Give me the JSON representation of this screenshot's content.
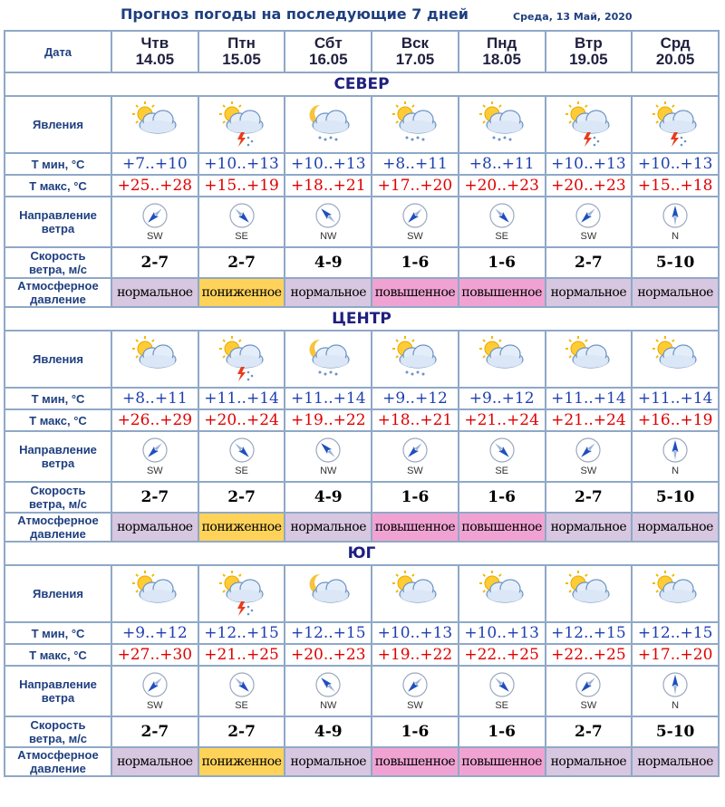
{
  "title": "Прогноз погоды на последующие 7 дней",
  "date": "Среда, 13 Май, 2020",
  "header": {
    "date_label": "Дата",
    "days": [
      {
        "dow": "Чтв",
        "date": "14.05"
      },
      {
        "dow": "Птн",
        "date": "15.05"
      },
      {
        "dow": "Сбт",
        "date": "16.05"
      },
      {
        "dow": "Вск",
        "date": "17.05"
      },
      {
        "dow": "Пнд",
        "date": "18.05"
      },
      {
        "dow": "Втр",
        "date": "19.05"
      },
      {
        "dow": "Срд",
        "date": "20.05"
      }
    ]
  },
  "row_labels": {
    "weather": "Явления",
    "tmin": "Т мин, °С",
    "tmax": "Т макс, °С",
    "wind_dir_1": "Направление",
    "wind_dir_2": "ветра",
    "wind_speed_1": "Скорость",
    "wind_speed_2": "ветра, м/с",
    "pressure_1": "Атмосферное",
    "pressure_2": "давление"
  },
  "regions": [
    {
      "name": "СЕВЕР",
      "weather_icons": [
        "sun-cloud-icon",
        "sun-cloud-thunder-icon",
        "moon-cloud-snow-icon",
        "sun-cloud-snow-icon",
        "sun-cloud-snow-icon",
        "sun-cloud-thunder-icon",
        "sun-cloud-thunder-icon"
      ],
      "tmin": [
        "+7..+10",
        "+10..+13",
        "+10..+13",
        "+8..+11",
        "+8..+11",
        "+10..+13",
        "+10..+13"
      ],
      "tmax": [
        "+25..+28",
        "+15..+19",
        "+18..+21",
        "+17..+20",
        "+20..+23",
        "+20..+23",
        "+15..+18"
      ],
      "wind_dir": [
        "SW",
        "SE",
        "NW",
        "SW",
        "SE",
        "SW",
        "N"
      ],
      "wind_speed": [
        "2-7",
        "2-7",
        "4-9",
        "1-6",
        "1-6",
        "2-7",
        "5-10"
      ],
      "pressure": [
        "нормальное",
        "пониженное",
        "нормальное",
        "повышенное",
        "повышенное",
        "нормальное",
        "нормальное"
      ]
    },
    {
      "name": "ЦЕНТР",
      "weather_icons": [
        "sun-cloud-icon",
        "sun-cloud-thunder-icon",
        "moon-cloud-snow-icon",
        "sun-cloud-snow-icon",
        "sun-cloud-icon",
        "sun-cloud-icon",
        "sun-cloud-icon"
      ],
      "tmin": [
        "+8..+11",
        "+11..+14",
        "+11..+14",
        "+9..+12",
        "+9..+12",
        "+11..+14",
        "+11..+14"
      ],
      "tmax": [
        "+26..+29",
        "+20..+24",
        "+19..+22",
        "+18..+21",
        "+21..+24",
        "+21..+24",
        "+16..+19"
      ],
      "wind_dir": [
        "SW",
        "SE",
        "NW",
        "SW",
        "SE",
        "SW",
        "N"
      ],
      "wind_speed": [
        "2-7",
        "2-7",
        "4-9",
        "1-6",
        "1-6",
        "2-7",
        "5-10"
      ],
      "pressure": [
        "нормальное",
        "пониженное",
        "нормальное",
        "повышенное",
        "повышенное",
        "нормальное",
        "нормальное"
      ]
    },
    {
      "name": "ЮГ",
      "weather_icons": [
        "sun-cloud-icon",
        "sun-cloud-thunder-icon",
        "moon-cloud-icon",
        "sun-cloud-icon",
        "sun-cloud-icon",
        "sun-cloud-icon",
        "sun-cloud-icon"
      ],
      "tmin": [
        "+9..+12",
        "+12..+15",
        "+12..+15",
        "+10..+13",
        "+10..+13",
        "+12..+15",
        "+12..+15"
      ],
      "tmax": [
        "+27..+30",
        "+21..+25",
        "+20..+23",
        "+19..+22",
        "+22..+25",
        "+22..+25",
        "+17..+20"
      ],
      "wind_dir": [
        "SW",
        "SE",
        "NW",
        "SW",
        "SE",
        "SW",
        "N"
      ],
      "wind_speed": [
        "2-7",
        "2-7",
        "4-9",
        "1-6",
        "1-6",
        "2-7",
        "5-10"
      ],
      "pressure": [
        "нормальное",
        "пониженное",
        "нормальное",
        "повышенное",
        "повышенное",
        "нормальное",
        "нормальное"
      ]
    }
  ],
  "colors": {
    "normal": "#d7c7e0",
    "low": "#ffd35a",
    "high": "#f0a3d3",
    "region_bg": "#d9e8b9",
    "tmin": "#1f3fb0",
    "tmax": "#e00000"
  }
}
